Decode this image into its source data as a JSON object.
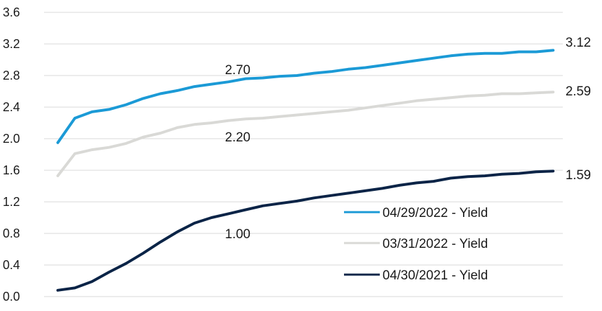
{
  "chart_data": {
    "type": "line",
    "title": "",
    "xlabel": "",
    "ylabel": "",
    "ylim": [
      0,
      3.6
    ],
    "yticks": [
      "0.0",
      "0.4",
      "0.8",
      "1.2",
      "1.6",
      "2.0",
      "2.4",
      "2.8",
      "3.2",
      "3.6"
    ],
    "grid": "horizontal",
    "legend_position": "bottom-right",
    "series": [
      {
        "name": "04/29/2022 - Yield",
        "color": "#1b9ad6",
        "values": [
          1.95,
          2.26,
          2.34,
          2.37,
          2.43,
          2.51,
          2.57,
          2.61,
          2.66,
          2.69,
          2.72,
          2.76,
          2.77,
          2.79,
          2.8,
          2.83,
          2.85,
          2.88,
          2.9,
          2.93,
          2.96,
          2.99,
          3.02,
          3.05,
          3.07,
          3.08,
          3.08,
          3.1,
          3.1,
          3.12
        ]
      },
      {
        "name": "03/31/2022 - Yield",
        "color": "#d9d9d6",
        "values": [
          1.53,
          1.81,
          1.86,
          1.89,
          1.94,
          2.02,
          2.07,
          2.14,
          2.18,
          2.2,
          2.23,
          2.25,
          2.26,
          2.28,
          2.3,
          2.32,
          2.34,
          2.36,
          2.39,
          2.42,
          2.45,
          2.48,
          2.5,
          2.52,
          2.54,
          2.55,
          2.57,
          2.57,
          2.58,
          2.59
        ]
      },
      {
        "name": "04/30/2021 - Yield",
        "color": "#0b2447",
        "values": [
          0.08,
          0.11,
          0.19,
          0.31,
          0.42,
          0.55,
          0.69,
          0.82,
          0.93,
          1.0,
          1.05,
          1.1,
          1.15,
          1.18,
          1.21,
          1.25,
          1.28,
          1.31,
          1.34,
          1.37,
          1.41,
          1.44,
          1.46,
          1.5,
          1.52,
          1.53,
          1.55,
          1.56,
          1.58,
          1.59
        ]
      }
    ],
    "annotations": [
      {
        "text": "2.70",
        "series": 0,
        "index": 10
      },
      {
        "text": "2.20",
        "series": 1,
        "index": 10
      },
      {
        "text": "1.00",
        "series": 2,
        "index": 10
      },
      {
        "text": "3.12",
        "series": 0,
        "index": 29
      },
      {
        "text": "2.59",
        "series": 1,
        "index": 29
      },
      {
        "text": "1.59",
        "series": 2,
        "index": 29
      }
    ]
  }
}
